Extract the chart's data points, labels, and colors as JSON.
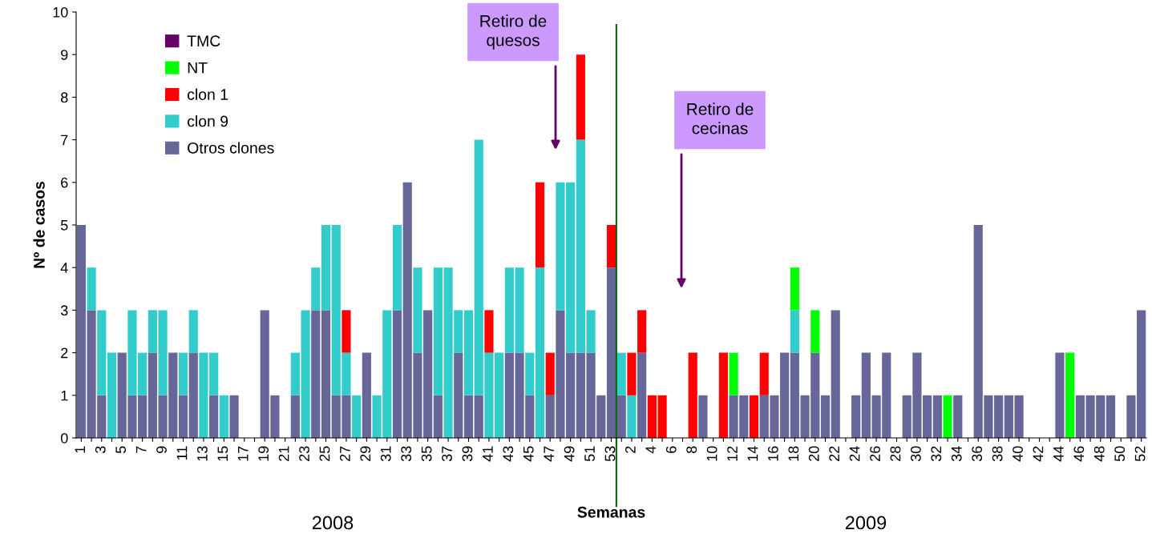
{
  "chart_data": {
    "type": "bar",
    "stacked": true,
    "xlabel": "Semanas",
    "ylabel": "Nº de casos",
    "categories": [
      "1",
      null,
      "3",
      null,
      "5",
      null,
      "7",
      null,
      "9",
      null,
      "11",
      null,
      "13",
      null,
      "15",
      null,
      "17",
      null,
      "19",
      null,
      "21",
      null,
      "23",
      null,
      "25",
      null,
      "27",
      null,
      "29",
      null,
      "31",
      null,
      "33",
      null,
      "35",
      null,
      "37",
      null,
      "39",
      null,
      "41",
      null,
      "43",
      null,
      "45",
      null,
      "47",
      null,
      "49",
      null,
      "51",
      null,
      "53",
      null,
      "2",
      null,
      "4",
      null,
      "6",
      null,
      "8",
      null,
      "10",
      null,
      "12",
      null,
      "14",
      null,
      "16",
      null,
      "18",
      null,
      "20",
      null,
      "22",
      null,
      "24",
      null,
      "26",
      null,
      "28",
      null,
      "30",
      null,
      "32",
      null,
      "34",
      null,
      "36",
      null,
      "38",
      null,
      "40",
      null,
      "42",
      null,
      "44",
      null,
      "46",
      null,
      "48",
      null,
      "50",
      null,
      "52"
    ],
    "series": [
      {
        "name": "Otros clones",
        "color": "#666699",
        "values": [
          5,
          3,
          1,
          0,
          2,
          1,
          1,
          2,
          1,
          2,
          1,
          2,
          0,
          1,
          0,
          1,
          0,
          0,
          3,
          1,
          0,
          1,
          0,
          3,
          3,
          1,
          1,
          0,
          2,
          0,
          0,
          3,
          6,
          2,
          3,
          1,
          0,
          2,
          1,
          1,
          0,
          0,
          2,
          2,
          1,
          0,
          1,
          3,
          2,
          2,
          2,
          1,
          4,
          1,
          0,
          2,
          0,
          0,
          0,
          0,
          0,
          1,
          0,
          0,
          1,
          1,
          0,
          1,
          1,
          2,
          2,
          1,
          2,
          1,
          3,
          0,
          1,
          2,
          1,
          2,
          0,
          1,
          2,
          1,
          1,
          0,
          1,
          0,
          5,
          1,
          1,
          1,
          1,
          0,
          0,
          0,
          2,
          0,
          1,
          1,
          1,
          1,
          0,
          1,
          3
        ]
      },
      {
        "name": "clon 9",
        "color": "#33cccc",
        "values": [
          0,
          1,
          2,
          2,
          0,
          2,
          1,
          1,
          2,
          0,
          1,
          1,
          2,
          1,
          1,
          0,
          0,
          0,
          0,
          0,
          0,
          1,
          3,
          1,
          2,
          4,
          1,
          1,
          0,
          1,
          3,
          2,
          0,
          2,
          0,
          3,
          4,
          1,
          2,
          6,
          2,
          2,
          2,
          2,
          1,
          4,
          0,
          3,
          4,
          5,
          1,
          0,
          0,
          1,
          1,
          0,
          0,
          0,
          0,
          0,
          0,
          0,
          0,
          0,
          0,
          0,
          0,
          0,
          0,
          0,
          1,
          0,
          0,
          0,
          0,
          0,
          0,
          0,
          0,
          0,
          0,
          0,
          0,
          0,
          0,
          0,
          0,
          0,
          0,
          0,
          0,
          0,
          0,
          0,
          0,
          0,
          0,
          0,
          0,
          0,
          0,
          0,
          0,
          0,
          0
        ]
      },
      {
        "name": "clon 1",
        "color": "#ff0000",
        "values": [
          0,
          0,
          0,
          0,
          0,
          0,
          0,
          0,
          0,
          0,
          0,
          0,
          0,
          0,
          0,
          0,
          0,
          0,
          0,
          0,
          0,
          0,
          0,
          0,
          0,
          0,
          1,
          0,
          0,
          0,
          0,
          0,
          0,
          0,
          0,
          0,
          0,
          0,
          0,
          0,
          1,
          0,
          0,
          0,
          0,
          2,
          1,
          0,
          0,
          2,
          0,
          0,
          1,
          0,
          1,
          1,
          1,
          1,
          0,
          0,
          2,
          0,
          0,
          2,
          0,
          0,
          1,
          1,
          0,
          0,
          0,
          0,
          0,
          0,
          0,
          0,
          0,
          0,
          0,
          0,
          0,
          0,
          0,
          0,
          0,
          0,
          0,
          0,
          0,
          0,
          0,
          0,
          0,
          0,
          0,
          0,
          0,
          0,
          0,
          0,
          0,
          0,
          0,
          0,
          0
        ]
      },
      {
        "name": "NT",
        "color": "#00ff00",
        "values": [
          0,
          0,
          0,
          0,
          0,
          0,
          0,
          0,
          0,
          0,
          0,
          0,
          0,
          0,
          0,
          0,
          0,
          0,
          0,
          0,
          0,
          0,
          0,
          0,
          0,
          0,
          0,
          0,
          0,
          0,
          0,
          0,
          0,
          0,
          0,
          0,
          0,
          0,
          0,
          0,
          0,
          0,
          0,
          0,
          0,
          0,
          0,
          0,
          0,
          0,
          0,
          0,
          0,
          0,
          0,
          0,
          0,
          0,
          0,
          0,
          0,
          0,
          0,
          0,
          1,
          0,
          0,
          0,
          0,
          0,
          1,
          0,
          1,
          0,
          0,
          0,
          0,
          0,
          0,
          0,
          0,
          0,
          0,
          0,
          0,
          1,
          0,
          0,
          0,
          0,
          0,
          0,
          0,
          0,
          0,
          0,
          0,
          2,
          0,
          0,
          0,
          0,
          0,
          0,
          0
        ]
      },
      {
        "name": "TMC",
        "color": "#660066",
        "values": [
          0,
          0,
          0,
          0,
          0,
          0,
          0,
          0,
          0,
          0,
          0,
          0,
          0,
          0,
          0,
          0,
          0,
          0,
          0,
          0,
          0,
          0,
          0,
          0,
          0,
          0,
          0,
          0,
          0,
          0,
          0,
          0,
          0,
          0,
          0,
          0,
          0,
          0,
          0,
          0,
          0,
          0,
          0,
          0,
          0,
          0,
          0,
          0,
          0,
          0,
          0,
          0,
          0,
          0,
          0,
          0,
          0,
          0,
          0,
          0,
          0,
          0,
          0,
          0,
          0,
          0,
          0,
          0,
          0,
          0,
          0,
          0,
          0,
          0,
          0,
          0,
          0,
          0,
          0,
          0,
          0,
          0,
          0,
          0,
          0,
          0,
          0,
          0,
          0,
          0,
          0,
          0,
          0,
          0,
          0,
          0,
          0,
          0,
          0,
          0,
          0,
          0,
          0,
          0,
          0
        ]
      }
    ],
    "ylim": [
      0,
      10
    ],
    "yticks": [
      0,
      1,
      2,
      3,
      4,
      5,
      6,
      7,
      8,
      9,
      10
    ],
    "grid": false,
    "legend": "top left",
    "ref_lines": [
      {
        "axis": "x",
        "value": "53",
        "color": "#006600"
      }
    ],
    "annotations": [
      "Retiro de\nquesos",
      "Retiro de\ncecinas",
      "2008",
      "2009"
    ]
  }
}
